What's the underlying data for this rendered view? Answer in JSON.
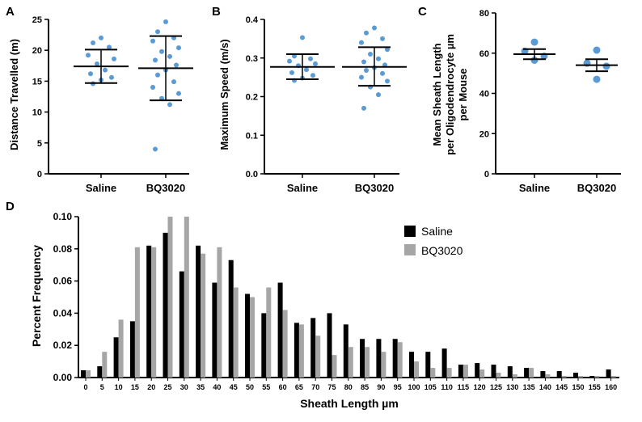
{
  "colors": {
    "point": "#5b9bd5",
    "saline_bar": "#000000",
    "bq3020_bar": "#a6a6a6",
    "axis": "#000000"
  },
  "chart_data": [
    {
      "panel": "A",
      "type": "scatter",
      "ylabel": "Distance Travelled (m)",
      "xlabel": "",
      "categories": [
        "Saline",
        "BQ3020"
      ],
      "ylim": [
        0,
        25
      ],
      "yticks": [
        0,
        5,
        10,
        15,
        20,
        25
      ],
      "groups": [
        {
          "name": "Saline",
          "mean": 17.4,
          "sd_low": 14.7,
          "sd_high": 20.1,
          "points": [
            22.0,
            21.2,
            20.5,
            19.2,
            18.6,
            17.8,
            16.8,
            16.2,
            15.6,
            15.2,
            14.6
          ]
        },
        {
          "name": "BQ3020",
          "mean": 17.1,
          "sd_low": 11.9,
          "sd_high": 22.3,
          "points": [
            24.6,
            23.0,
            22.0,
            21.5,
            20.4,
            19.8,
            19.0,
            18.4,
            17.6,
            16.8,
            16.0,
            14.9,
            14.0,
            13.0,
            12.2,
            11.2,
            4.0
          ]
        }
      ]
    },
    {
      "panel": "B",
      "type": "scatter",
      "ylabel": "Maximum Speed (m/s)",
      "xlabel": "",
      "categories": [
        "Saline",
        "BQ3020"
      ],
      "ylim": [
        0.0,
        0.4
      ],
      "yticks": [
        "0.0",
        "0.1",
        "0.2",
        "0.3",
        "0.4"
      ],
      "groups": [
        {
          "name": "Saline",
          "mean": 0.277,
          "sd_low": 0.245,
          "sd_high": 0.31,
          "points": [
            0.353,
            0.305,
            0.298,
            0.292,
            0.285,
            0.28,
            0.27,
            0.262,
            0.255,
            0.248,
            0.242
          ]
        },
        {
          "name": "BQ3020",
          "mean": 0.277,
          "sd_low": 0.228,
          "sd_high": 0.328,
          "points": [
            0.378,
            0.365,
            0.35,
            0.34,
            0.322,
            0.31,
            0.298,
            0.29,
            0.282,
            0.275,
            0.268,
            0.26,
            0.25,
            0.24,
            0.225,
            0.205,
            0.17
          ]
        }
      ]
    },
    {
      "panel": "C",
      "type": "scatter",
      "ylabel": "Mean Sheath Length per Oligodendrocyte µm per Mouse",
      "ylabel_lines": [
        "Mean Sheath Length",
        "per Oligodendrocyte µm",
        "per Mouse"
      ],
      "xlabel": "",
      "categories": [
        "Saline",
        "BQ3020"
      ],
      "ylim": [
        0,
        80
      ],
      "yticks": [
        0,
        20,
        40,
        60,
        80
      ],
      "groups": [
        {
          "name": "Saline",
          "mean": 59.5,
          "sem_low": 57.0,
          "sem_high": 62.0,
          "points": [
            65.5,
            61.0,
            58.5,
            56.5
          ]
        },
        {
          "name": "BQ3020",
          "mean": 54.0,
          "sem_low": 51.0,
          "sem_high": 57.0,
          "points": [
            61.5,
            55.0,
            53.5,
            47.0
          ]
        }
      ]
    },
    {
      "panel": "D",
      "type": "bar",
      "xlabel": "Sheath Length µm",
      "ylabel": "Percent Frequency",
      "ylim": [
        0.0,
        0.1
      ],
      "yticks": [
        "0.00",
        "0.02",
        "0.04",
        "0.06",
        "0.08",
        "0.10"
      ],
      "legend": "top-right",
      "categories": [
        "0",
        "5",
        "10",
        "15",
        "20",
        "25",
        "30",
        "35",
        "40",
        "45",
        "50",
        "55",
        "60",
        "65",
        "70",
        "75",
        "80",
        "85",
        "90",
        "95",
        "100",
        "105",
        "110",
        "115",
        "120",
        "125",
        "130",
        "135",
        "140",
        "145",
        "150",
        "155",
        "160"
      ],
      "series": [
        {
          "name": "Saline",
          "values": [
            0.0045,
            0.007,
            0.025,
            0.035,
            0.082,
            0.09,
            0.066,
            0.082,
            0.059,
            0.073,
            0.052,
            0.04,
            0.059,
            0.034,
            0.037,
            0.04,
            0.033,
            0.024,
            0.024,
            0.024,
            0.016,
            0.016,
            0.018,
            0.008,
            0.009,
            0.008,
            0.007,
            0.006,
            0.004,
            0.004,
            0.003,
            0.001,
            0.005
          ]
        },
        {
          "name": "BQ3020",
          "values": [
            0.0045,
            0.016,
            0.036,
            0.081,
            0.081,
            0.1,
            0.1,
            0.077,
            0.081,
            0.056,
            0.05,
            0.056,
            0.042,
            0.033,
            0.026,
            0.014,
            0.019,
            0.019,
            0.016,
            0.022,
            0.01,
            0.006,
            0.006,
            0.008,
            0.005,
            0.003,
            0.002,
            0.006,
            0.002,
            0.001,
            0.001,
            0.001,
            0.001
          ]
        }
      ]
    }
  ]
}
